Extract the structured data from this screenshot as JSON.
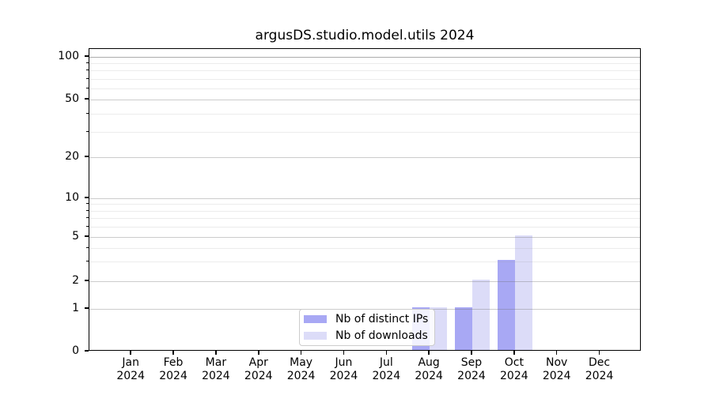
{
  "title": "argusDS.studio.model.utils 2024",
  "legend": {
    "items": [
      {
        "label": "Nb of distinct IPs",
        "color": "#a8a8f4"
      },
      {
        "label": "Nb of downloads",
        "color": "#dcdcf8"
      }
    ]
  },
  "colors": {
    "distinct_ips_bar": "#a8a8f4",
    "downloads_bar": "#dcdcf8",
    "axis": "#000000",
    "major_grid": "#d4d4d4",
    "minor_grid": "#ececec"
  },
  "chart_data": {
    "type": "bar",
    "title": "argusDS.studio.model.utils 2024",
    "xlabel": "",
    "ylabel": "",
    "categories": [
      {
        "month": "Jan",
        "year": "2024"
      },
      {
        "month": "Feb",
        "year": "2024"
      },
      {
        "month": "Mar",
        "year": "2024"
      },
      {
        "month": "Apr",
        "year": "2024"
      },
      {
        "month": "May",
        "year": "2024"
      },
      {
        "month": "Jun",
        "year": "2024"
      },
      {
        "month": "Jul",
        "year": "2024"
      },
      {
        "month": "Aug",
        "year": "2024"
      },
      {
        "month": "Sep",
        "year": "2024"
      },
      {
        "month": "Oct",
        "year": "2024"
      },
      {
        "month": "Nov",
        "year": "2024"
      },
      {
        "month": "Dec",
        "year": "2024"
      }
    ],
    "series": [
      {
        "name": "Nb of distinct IPs",
        "color": "#a8a8f4",
        "values": [
          0,
          0,
          0,
          0,
          0,
          0,
          0,
          1,
          1,
          3,
          0,
          0
        ]
      },
      {
        "name": "Nb of downloads",
        "color": "#dcdcf8",
        "values": [
          0,
          0,
          0,
          0,
          0,
          0,
          0,
          1,
          2,
          5,
          0,
          0
        ]
      }
    ],
    "y_axis": {
      "scale": "symlog-like",
      "labeled_ticks": [
        0,
        1,
        2,
        5,
        10,
        20,
        50,
        100
      ],
      "minor_ticks": [
        3,
        4,
        6,
        7,
        8,
        9,
        30,
        40,
        60,
        70,
        80,
        90
      ],
      "ylim": [
        0,
        115
      ],
      "grid": "on"
    },
    "legend_position": "lower-center-inside"
  }
}
